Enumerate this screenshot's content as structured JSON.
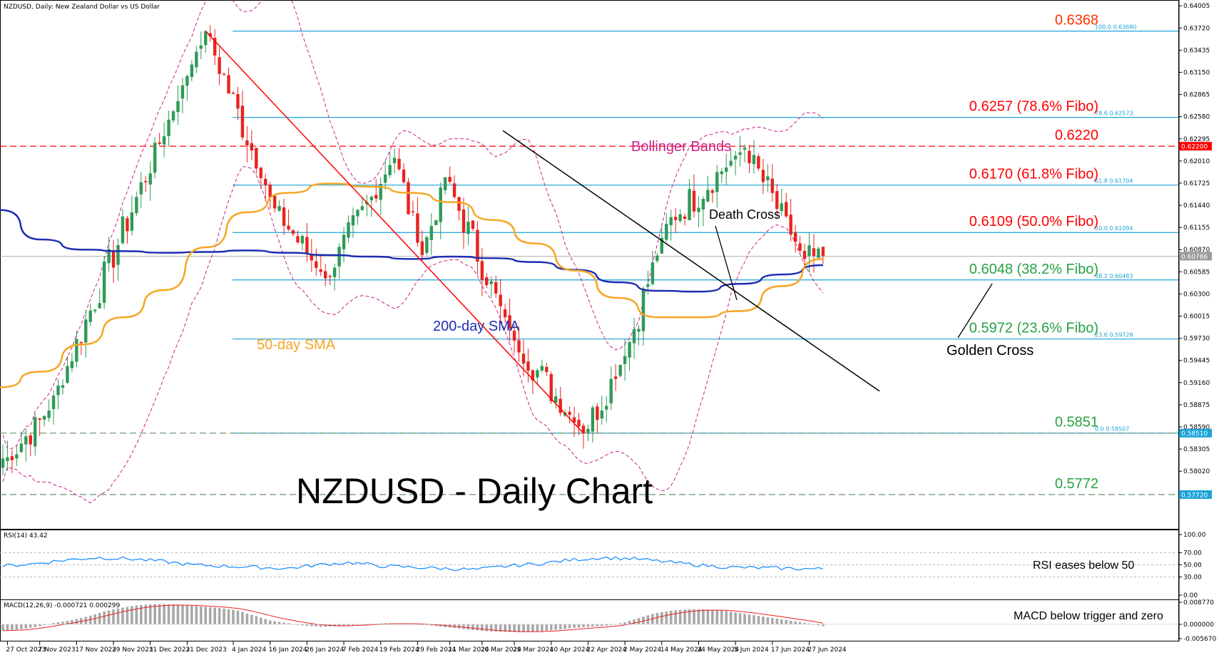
{
  "header": {
    "main": "NZDUSD, Daily:  New Zealand Dollar vs US Dollar",
    "rsi": "RSI(14) 43.42",
    "macd": "MACD(12,26,9) -0.000721 0.000299"
  },
  "chart_data": {
    "type": "candlestick",
    "title": "NZDUSD - Daily Chart",
    "symbol": "NZDUSD",
    "timeframe": "Daily",
    "ylim": [
      0.5727,
      0.6408
    ],
    "price_axis_ticks": [
      "0.64005",
      "0.63720",
      "0.63435",
      "0.63150",
      "0.62865",
      "0.62580",
      "0.62295",
      "0.62010",
      "0.61725",
      "0.61440",
      "0.61155",
      "0.60870",
      "0.60585",
      "0.60300",
      "0.60015",
      "0.59730",
      "0.59445",
      "0.59160",
      "0.58875",
      "0.58590",
      "0.58305",
      "0.58020"
    ],
    "date_axis_ticks": [
      "27 Oct 2023",
      "7 Nov 2023",
      "17 Nov 2023",
      "29 Nov 2023",
      "11 Dec 2023",
      "21 Dec 2023",
      "4 Jan 2024",
      "16 Jan 2024",
      "26 Jan 2024",
      "7 Feb 2024",
      "19 Feb 2024",
      "29 Feb 2024",
      "11 Mar 2024",
      "20 Mar 2024",
      "29 Mar 2024",
      "10 Apr 2024",
      "22 Apr 2024",
      "2 May 2024",
      "14 May 2024",
      "24 May 2024",
      "5 Jun 2024",
      "17 Jun 2024",
      "27 Jun 2024"
    ],
    "price_tags": [
      {
        "value": "0.62200",
        "color": "#ff0000"
      },
      {
        "value": "0.60786",
        "color": "#9a9a9a"
      },
      {
        "value": "0.58510",
        "color": "#1aa3d9"
      },
      {
        "value": "0.57720",
        "color": "#1aa3d9"
      }
    ],
    "fibonacci": [
      {
        "price": 0.6368,
        "tag": "100.0 0.63680",
        "label": "0.6368",
        "color": "#ff3300"
      },
      {
        "price": 0.6257,
        "tag": "78.6 0.62573",
        "label": "0.6257 (78.6% Fibo)",
        "color": "#ff0000"
      },
      {
        "price": 0.617,
        "tag": "61.8 0.61704",
        "label": "0.6170 (61.8% Fibo)",
        "color": "#ff0000"
      },
      {
        "price": 0.6109,
        "tag": "50.0 0.61094",
        "label": "0.6109 (50.0% Fibo)",
        "color": "#ff0000"
      },
      {
        "price": 0.6048,
        "tag": "38.2 0.60483",
        "label": "0.6048 (38.2% Fibo)",
        "color": "#27a244"
      },
      {
        "price": 0.5972,
        "tag": "23.6 0.59728",
        "label": "0.5972 (23.6% Fibo)",
        "color": "#27a244"
      },
      {
        "price": 0.5851,
        "tag": "0.0 0.58507",
        "label": "0.5851",
        "color": "#27a244"
      }
    ],
    "horizontal_levels": [
      {
        "price": 0.622,
        "label": "0.6220",
        "style": "dashed",
        "color": "#ff0000"
      },
      {
        "price": 0.5851,
        "label": "",
        "style": "dashed",
        "color": "#6a8f6a"
      },
      {
        "price": 0.5772,
        "label": "0.5772",
        "style": "dashed",
        "color": "#6a8f6a"
      }
    ],
    "key_points": [
      {
        "date": "27 Oct 2023",
        "price": 0.582
      },
      {
        "date": "9 Nov 2023",
        "price": 0.588
      },
      {
        "date": "27 Dec 2023",
        "price": 0.6368
      },
      {
        "date": "17 Jan 2024",
        "price": 0.614
      },
      {
        "date": "1 Feb 2024",
        "price": 0.605
      },
      {
        "date": "22 Feb 2024",
        "price": 0.6205
      },
      {
        "date": "1 Mar 2024",
        "price": 0.608
      },
      {
        "date": "8 Mar 2024",
        "price": 0.618
      },
      {
        "date": "29 Mar 2024",
        "price": 0.597
      },
      {
        "date": "19 Apr 2024",
        "price": 0.5851
      },
      {
        "date": "2 May 2024",
        "price": 0.595
      },
      {
        "date": "15 May 2024",
        "price": 0.612
      },
      {
        "date": "7 Jun 2024",
        "price": 0.6218
      },
      {
        "date": "26 Jun 2024",
        "price": 0.6075
      },
      {
        "date": "2 Jul 2024",
        "price": 0.6079
      }
    ],
    "sma50": [
      0.591,
      0.593,
      0.5965,
      0.6,
      0.6035,
      0.609,
      0.6135,
      0.616,
      0.6172,
      0.6168,
      0.616,
      0.6148,
      0.6125,
      0.6095,
      0.606,
      0.6025,
      0.6,
      0.6,
      0.6008,
      0.604,
      0.6075
    ],
    "sma200": [
      0.6138,
      0.61,
      0.6087,
      0.6085,
      0.6083,
      0.6084,
      0.6086,
      0.6083,
      0.608,
      0.6078,
      0.6075,
      0.6078,
      0.6076,
      0.6071,
      0.6061,
      0.6045,
      0.6034,
      0.6033,
      0.6043,
      0.6055,
      0.6067
    ],
    "bollinger": {
      "upper_mid_lower": "indicative"
    },
    "annotations": [
      {
        "text": "Bollinger Bands",
        "color": "#cc2288"
      },
      {
        "text": "50-day SMA",
        "color": "#f5a623"
      },
      {
        "text": "200-day SMA",
        "color": "#1f2db2"
      },
      {
        "text": "Death Cross",
        "color": "#000000"
      },
      {
        "text": "Golden Cross",
        "color": "#000000"
      },
      {
        "text": "RSI eases below 50",
        "color": "#000000"
      },
      {
        "text": "MACD below trigger and zero",
        "color": "#000000"
      }
    ],
    "rsi": {
      "name": "RSI(14)",
      "last": 43.42,
      "ticks": [
        "100.00",
        "70.00",
        "50.00",
        "30.00",
        "0.00"
      ],
      "values": [
        48,
        52,
        58,
        62,
        60,
        56,
        50,
        48,
        46,
        44,
        50,
        54,
        48,
        46,
        44,
        42,
        48,
        52,
        58,
        62,
        60,
        55,
        50,
        46,
        45,
        44,
        43
      ]
    },
    "macd": {
      "name": "MACD(12,26,9)",
      "macd": -0.000721,
      "signal": 0.000299,
      "ticks": [
        "0.008770",
        "0.000000",
        "-0.005670"
      ],
      "histogram": [
        -0.0025,
        -0.002,
        -0.001,
        0.0005,
        0.0015,
        0.003,
        0.005,
        0.0065,
        0.0075,
        0.008,
        0.008,
        0.0075,
        0.007,
        0.0065,
        0.0055,
        0.0035,
        0.0015,
        0.0005,
        -0.0005,
        -0.001,
        -0.0008,
        -0.0003,
        0.0002,
        0.0005,
        0.0003,
        0.0,
        -0.0008,
        -0.0015,
        -0.0022,
        -0.0028,
        -0.003,
        -0.0032,
        -0.0028,
        -0.0022,
        -0.0015,
        -0.001,
        -0.0006,
        0.0005,
        0.0025,
        0.0045,
        0.0055,
        0.006,
        0.006,
        0.0055,
        0.0045,
        0.0035,
        0.0025,
        0.0015,
        0.0005,
        -0.0007
      ]
    }
  }
}
